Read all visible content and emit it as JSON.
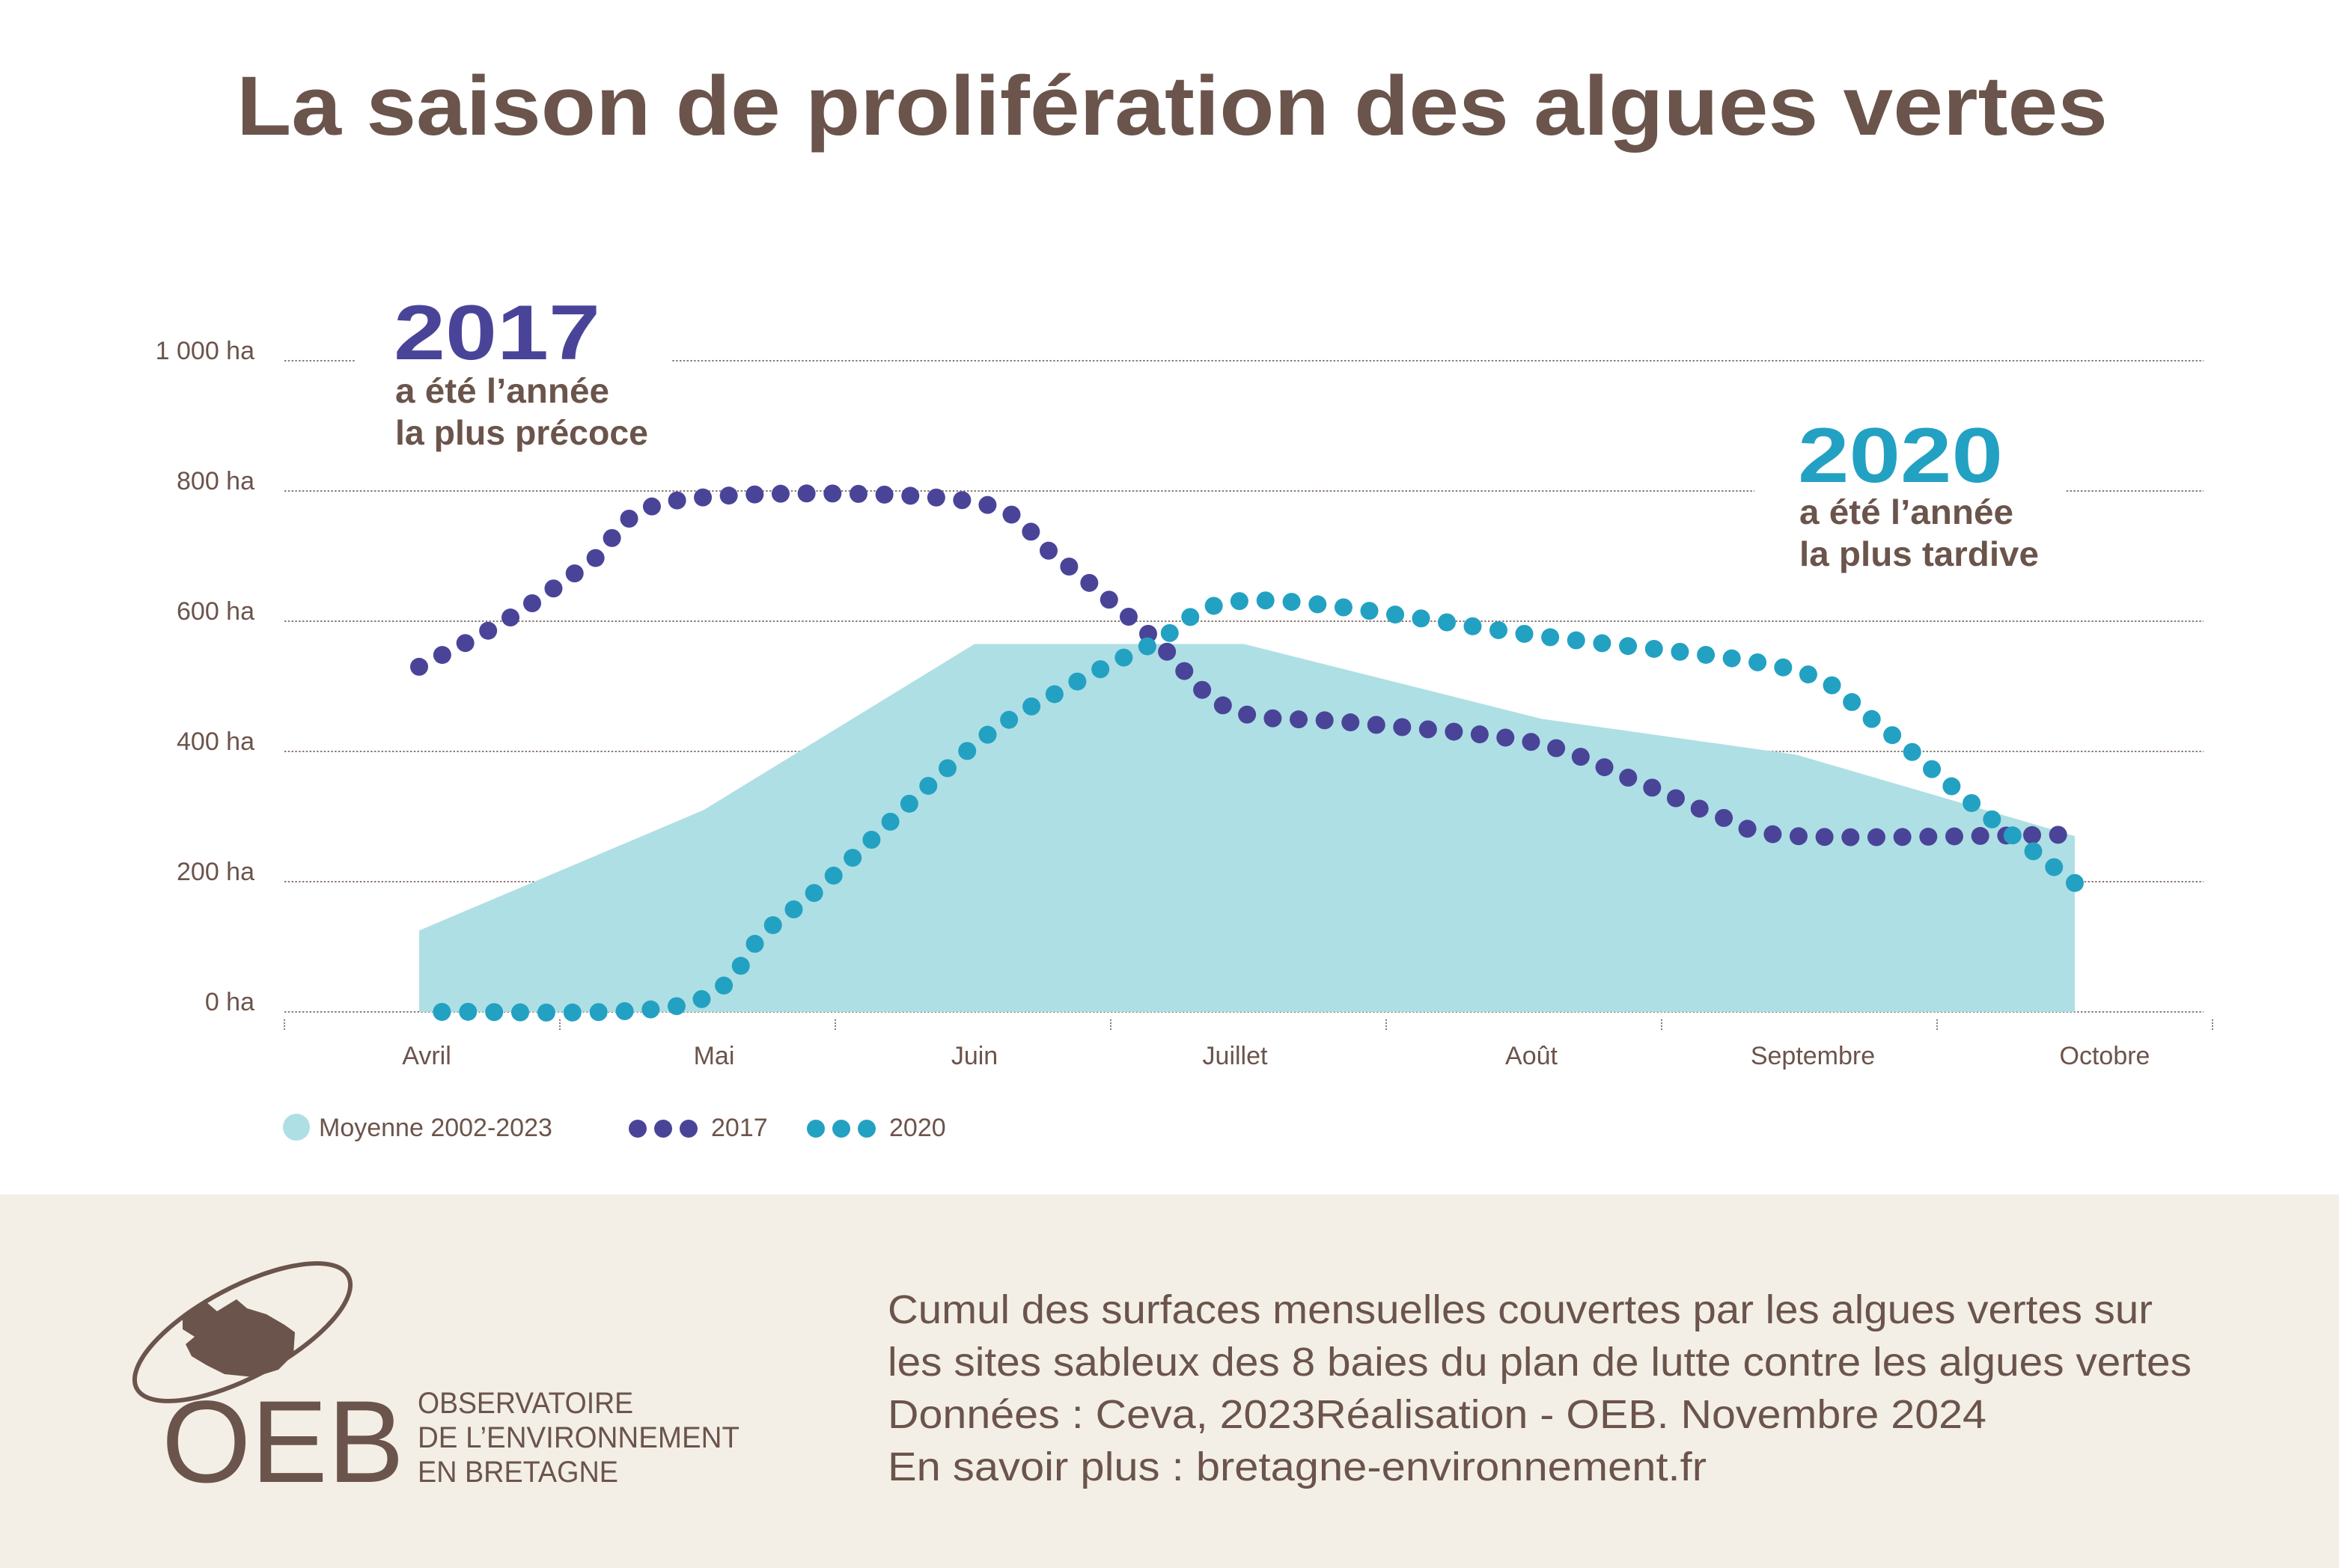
{
  "title": "La saison de prolifération des algues vertes",
  "annotations": {
    "a2017": {
      "year": "2017",
      "line1": "a été l’année",
      "line2": "la plus précoce"
    },
    "a2020": {
      "year": "2020",
      "line1": "a été l’année",
      "line2": "la plus tardive"
    }
  },
  "legend": {
    "mean": "Moyenne 2002-2023",
    "s2017": "2017",
    "s2020": "2020"
  },
  "footer": {
    "lines": [
      "Cumul des surfaces mensuelles couvertes par les algues vertes sur",
      "les sites sableux des 8 baies du plan de lutte contre les algues vertes",
      "Données : Ceva, 2023Réalisation - OEB. Novembre 2024",
      "En savoir plus : bretagne-environnement.fr"
    ],
    "logo": {
      "acronym": "OEB",
      "name_lines": [
        "OBSERVATOIRE",
        "DE L’ENVIRONNEMENT",
        "EN BRETAGNE"
      ]
    }
  },
  "colors": {
    "title": "#6b544b",
    "s2017": "#4a4499",
    "s2020": "#23a1c3",
    "mean": "#aedfe4",
    "footer_bg": "#f3efe7"
  },
  "chart_data": {
    "type": "area+scatter-line",
    "title": "La saison de prolifération des algues vertes",
    "xlabel": "",
    "ylabel": "",
    "categories": [
      "Avril",
      "Mai",
      "Juin",
      "Juillet",
      "Août",
      "Septembre",
      "Octobre"
    ],
    "yticks": [
      0,
      200,
      400,
      600,
      800,
      1000
    ],
    "ytick_labels": [
      "0 ha",
      "200 ha",
      "400 ha",
      "600 ha",
      "800 ha",
      "1 000 ha"
    ],
    "ylim": [
      0,
      1000
    ],
    "grid": "horizontal dotted",
    "legend_position": "bottom-left",
    "series": [
      {
        "name": "Moyenne 2002-2023",
        "style": "area",
        "color": "#aedfe4",
        "points": [
          [
            0,
            125
          ],
          [
            1,
            310
          ],
          [
            2,
            565
          ],
          [
            3,
            565
          ],
          [
            4,
            450
          ],
          [
            5,
            395
          ],
          [
            6,
            270
          ]
        ]
      },
      {
        "name": "2017",
        "style": "dotted",
        "color": "#4a4499",
        "points": [
          [
            0,
            530
          ],
          [
            0.3,
            600
          ],
          [
            0.6,
            690
          ],
          [
            0.9,
            785
          ],
          [
            1.97,
            785
          ],
          [
            2.3,
            700
          ],
          [
            2.66,
            575
          ],
          [
            2.95,
            465
          ],
          [
            3.35,
            445
          ],
          [
            3.96,
            415
          ],
          [
            4.35,
            358
          ],
          [
            4.7,
            300
          ],
          [
            5,
            270
          ],
          [
            5.94,
            272
          ]
        ]
      },
      {
        "name": "2020",
        "style": "dotted",
        "color": "#23a1c3",
        "points": [
          [
            0.08,
            0
          ],
          [
            0.94,
            12
          ],
          [
            1.23,
            124
          ],
          [
            1.45,
            198
          ],
          [
            2.0,
            410
          ],
          [
            2.35,
            500
          ],
          [
            2.66,
            565
          ],
          [
            3.03,
            632
          ],
          [
            4.0,
            577
          ],
          [
            4.97,
            527
          ],
          [
            5.27,
            450
          ],
          [
            5.64,
            317
          ],
          [
            6,
            198
          ]
        ]
      }
    ]
  }
}
